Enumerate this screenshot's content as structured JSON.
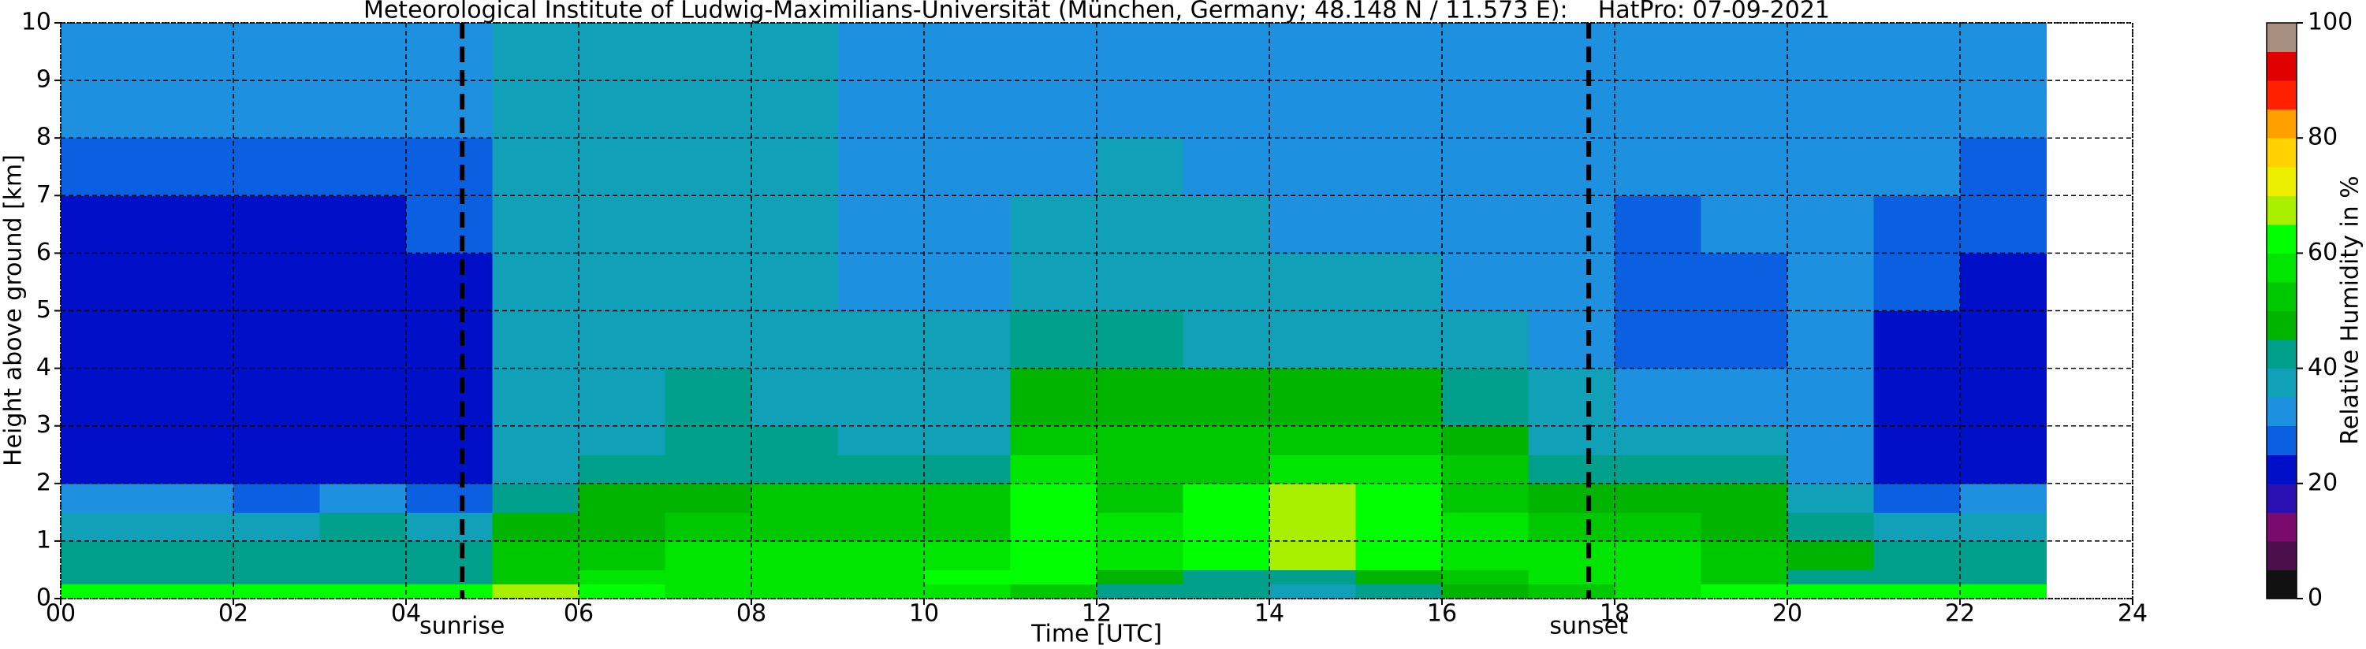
{
  "chart_data": {
    "type": "heatmap",
    "title": "Meteorological Institute of Ludwig-Maximilians-Universität (München, Germany; 48.148 N / 11.573 E):    HatPro: 07-09-2021",
    "xlabel": "Time [UTC]",
    "ylabel": "Height above ground [km]",
    "colorbar_label": "Relative Humidity in %",
    "x_edges": [
      0,
      1,
      2,
      3,
      4,
      5,
      6,
      7,
      8,
      9,
      10,
      11,
      12,
      13,
      14,
      15,
      16,
      17,
      18,
      19,
      20,
      21,
      22,
      23
    ],
    "y_edges": [
      0,
      0.25,
      0.5,
      1,
      1.5,
      2,
      2.5,
      3,
      4,
      5,
      6,
      7,
      8,
      9,
      10
    ],
    "values": [
      [
        62,
        62,
        62,
        62,
        62,
        65,
        62,
        58,
        55,
        55,
        55,
        50,
        40,
        42,
        38,
        42,
        45,
        50,
        55,
        60,
        62,
        62,
        62
      ],
      [
        40,
        40,
        40,
        40,
        40,
        50,
        55,
        58,
        58,
        58,
        60,
        60,
        45,
        42,
        40,
        45,
        50,
        55,
        58,
        52,
        42,
        40,
        40
      ],
      [
        40,
        40,
        40,
        42,
        40,
        50,
        52,
        55,
        56,
        56,
        56,
        60,
        58,
        60,
        65,
        60,
        58,
        56,
        55,
        50,
        45,
        42,
        40
      ],
      [
        38,
        38,
        38,
        40,
        38,
        45,
        48,
        50,
        52,
        52,
        54,
        62,
        56,
        62,
        68,
        64,
        56,
        52,
        50,
        48,
        42,
        38,
        38
      ],
      [
        32,
        30,
        28,
        30,
        28,
        42,
        45,
        48,
        50,
        50,
        50,
        60,
        54,
        60,
        66,
        60,
        52,
        48,
        46,
        45,
        35,
        28,
        30
      ],
      [
        21,
        20,
        20,
        21,
        21,
        38,
        40,
        42,
        42,
        42,
        42,
        55,
        52,
        52,
        55,
        55,
        50,
        42,
        40,
        40,
        32,
        22,
        21
      ],
      [
        20,
        20,
        20,
        20,
        20,
        38,
        38,
        40,
        40,
        38,
        38,
        52,
        50,
        50,
        50,
        52,
        45,
        38,
        36,
        35,
        32,
        22,
        20
      ],
      [
        20,
        20,
        20,
        20,
        20,
        37,
        36,
        40,
        36,
        35,
        35,
        48,
        48,
        45,
        45,
        46,
        40,
        35,
        30,
        30,
        30,
        21,
        20
      ],
      [
        20,
        20,
        20,
        20,
        21,
        37,
        36,
        38,
        35,
        35,
        35,
        40,
        40,
        38,
        36,
        36,
        35,
        30,
        25,
        28,
        30,
        22,
        20
      ],
      [
        21,
        21,
        21,
        21,
        22,
        38,
        36,
        38,
        35,
        34,
        34,
        36,
        37,
        35,
        35,
        35,
        34,
        30,
        26,
        28,
        30,
        25,
        22
      ],
      [
        22,
        22,
        22,
        22,
        25,
        38,
        37,
        38,
        36,
        34,
        34,
        35,
        36,
        35,
        34,
        34,
        33,
        30,
        28,
        30,
        30,
        28,
        25
      ],
      [
        27,
        27,
        27,
        28,
        28,
        38,
        38,
        38,
        36,
        34,
        33,
        34,
        35,
        34,
        33,
        33,
        33,
        32,
        30,
        31,
        31,
        30,
        28
      ],
      [
        30,
        30,
        30,
        30,
        30,
        38,
        38,
        38,
        36,
        34,
        33,
        33,
        34,
        32,
        32,
        32,
        32,
        32,
        32,
        32,
        32,
        31,
        30
      ],
      [
        32,
        32,
        32,
        32,
        32,
        37,
        38,
        38,
        36,
        34,
        33,
        33,
        33,
        31,
        31,
        31,
        31,
        32,
        32,
        32,
        32,
        32,
        32
      ]
    ],
    "xlim": [
      0,
      24
    ],
    "ylim": [
      0,
      10
    ],
    "xticks": [
      {
        "value": 0,
        "label": "00"
      },
      {
        "value": 2,
        "label": "02"
      },
      {
        "value": 4,
        "label": "04"
      },
      {
        "value": 6,
        "label": "06"
      },
      {
        "value": 8,
        "label": "08"
      },
      10,
      12,
      14,
      16,
      18,
      20,
      22,
      24
    ],
    "yticks": [
      0,
      1,
      2,
      3,
      4,
      5,
      6,
      7,
      8,
      9,
      10
    ],
    "clim": [
      0,
      100
    ],
    "cticks": [
      0,
      20,
      40,
      60,
      80,
      100
    ],
    "colorscale": [
      "#111111",
      "#4b0f4b",
      "#7a0a6e",
      "#2a10b0",
      "#0010c8",
      "#0a60e0",
      "#1e90e0",
      "#10a0b8",
      "#00a08c",
      "#00b400",
      "#00c800",
      "#00e600",
      "#00ff00",
      "#a8f000",
      "#ecf000",
      "#ffd200",
      "#ffa000",
      "#ff2000",
      "#e00000",
      "#a89080"
    ],
    "grid": true,
    "vlines": [
      {
        "x": 4.65,
        "label": "sunrise"
      },
      {
        "x": 17.7,
        "label": "sunset"
      }
    ]
  }
}
